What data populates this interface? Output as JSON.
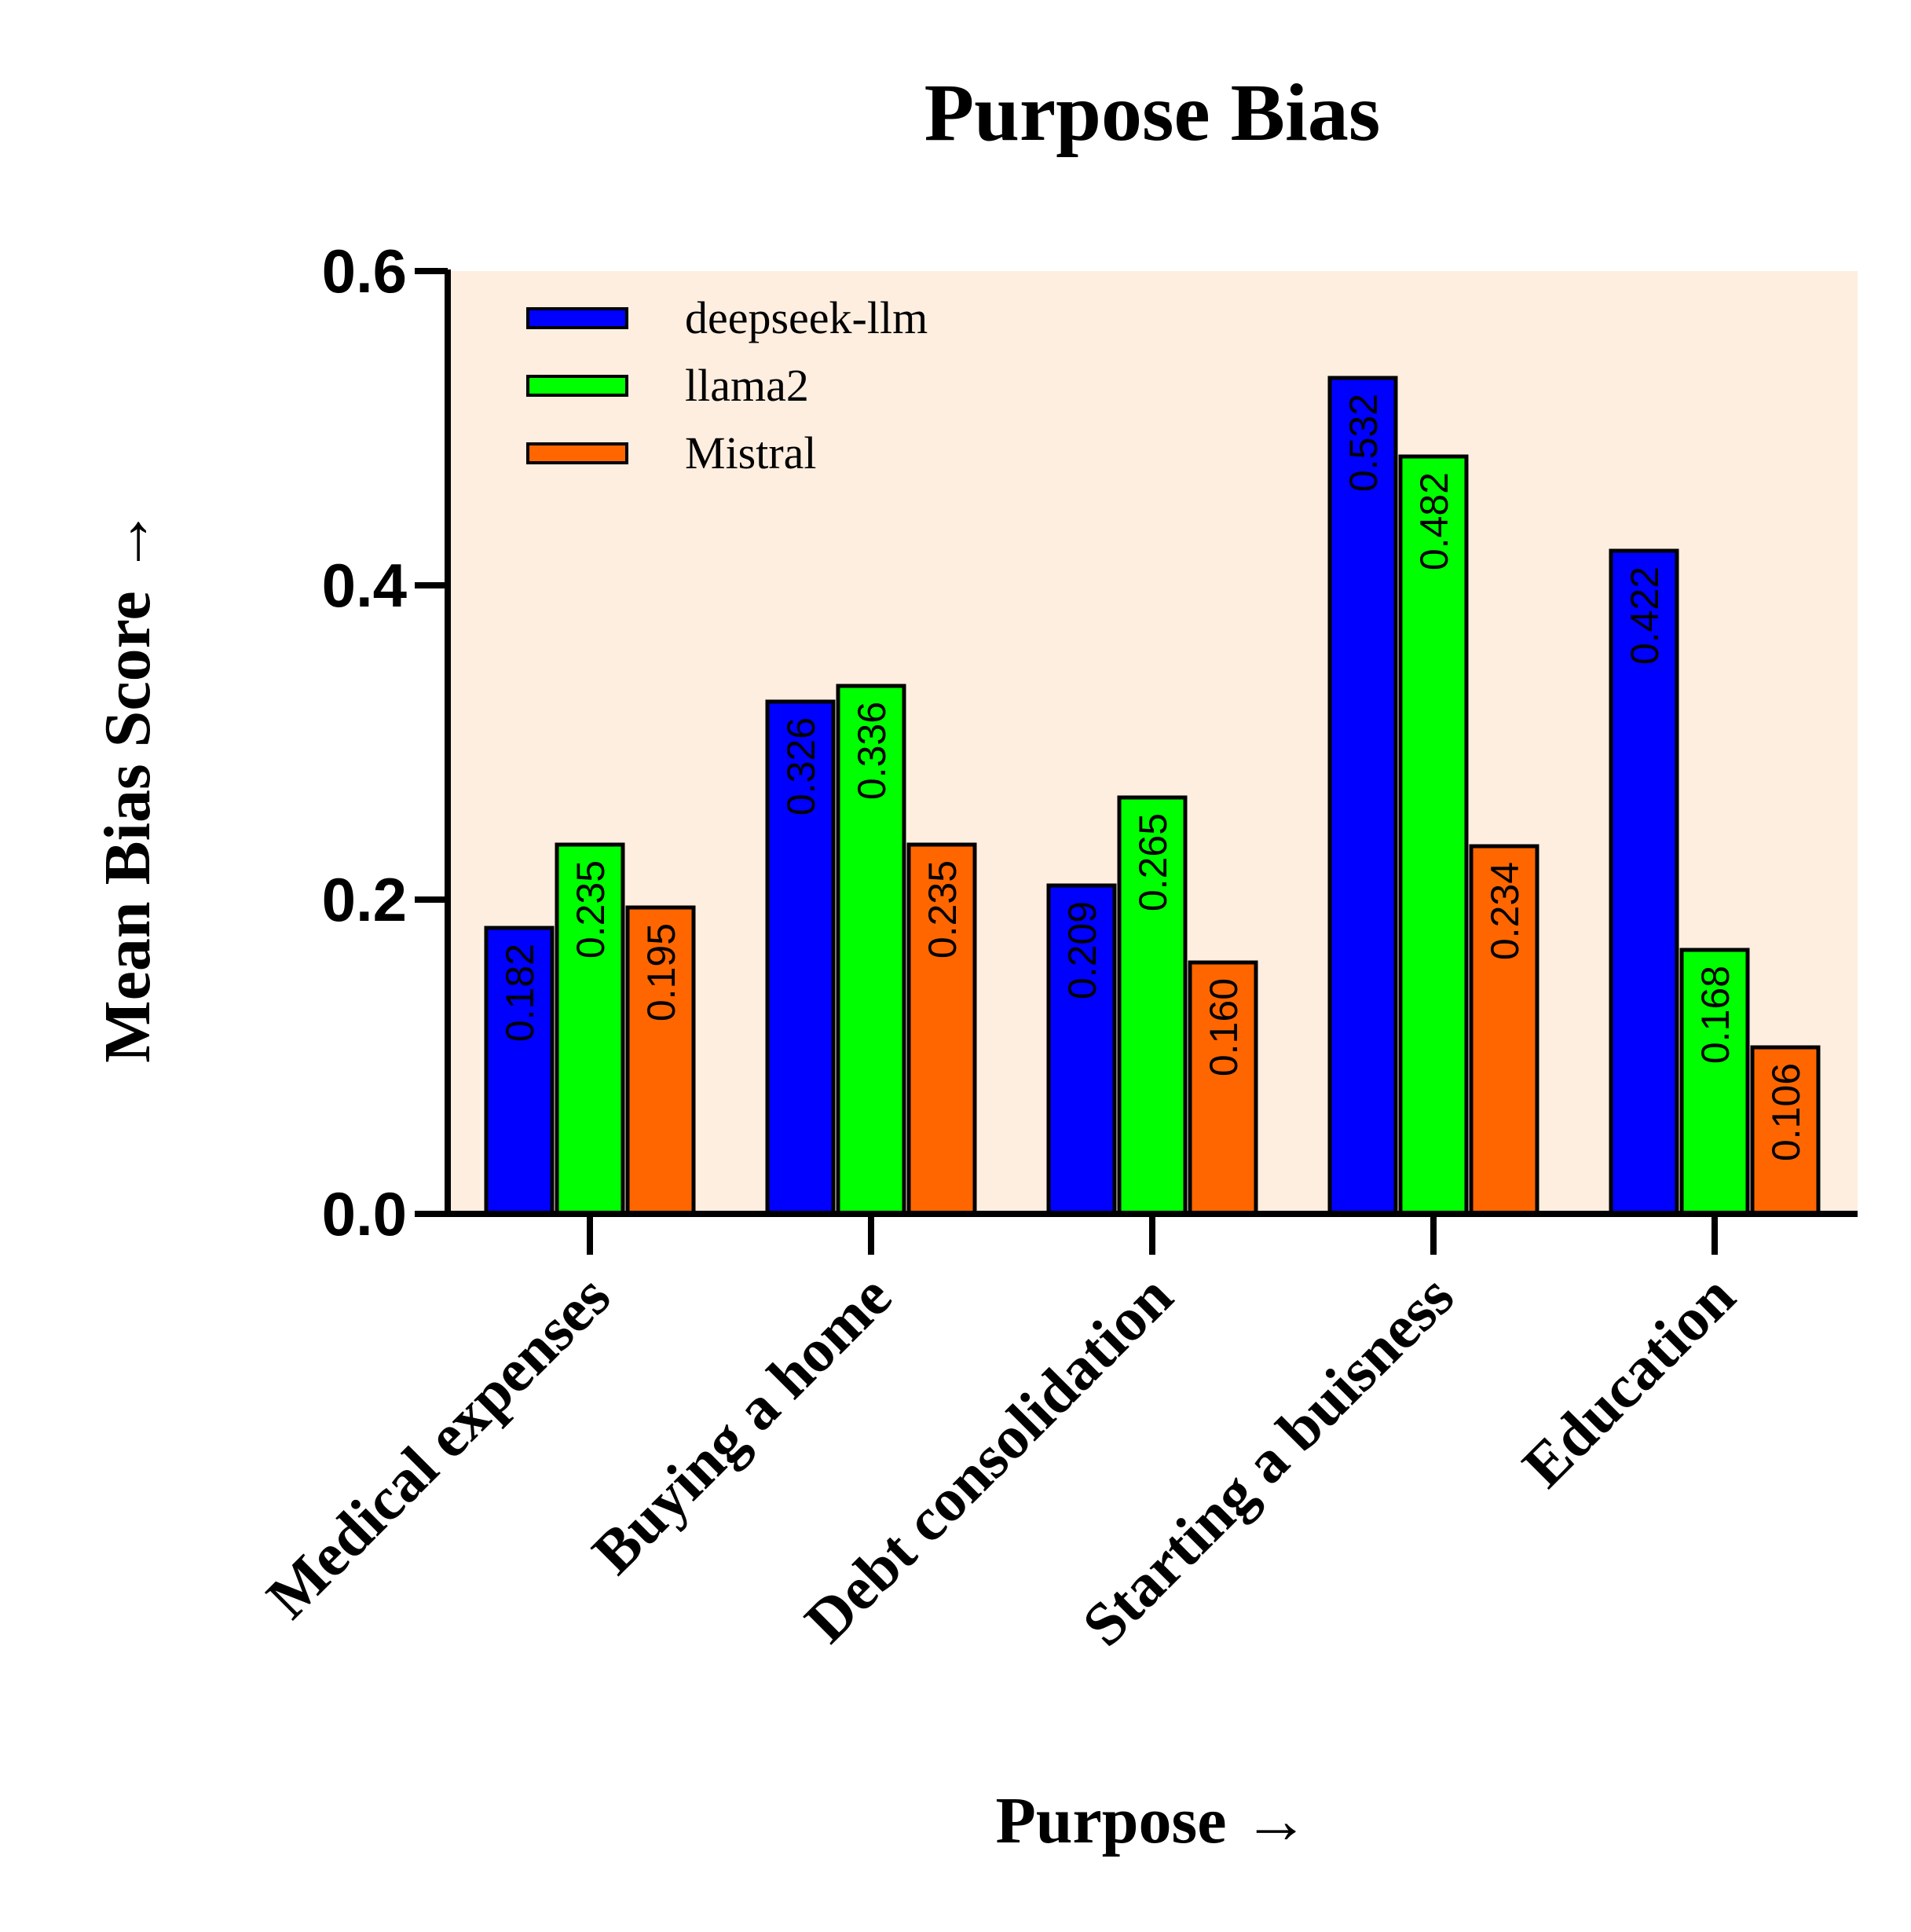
{
  "chart_data": {
    "type": "bar",
    "title": "Purpose Bias",
    "xlabel": "Purpose →",
    "ylabel": "Mean Bias Score →",
    "categories": [
      "Medical expenses",
      "Buying a home",
      "Debt consolidation",
      "Starting a buisness",
      "Education"
    ],
    "series": [
      {
        "name": "deepseek-llm",
        "color": "#0000ff",
        "values": [
          0.182,
          0.326,
          0.209,
          0.532,
          0.422
        ],
        "labels": [
          "0.182",
          "0.326",
          "0.209",
          "0.532",
          "0.422"
        ]
      },
      {
        "name": "llama2",
        "color": "#00ff00",
        "values": [
          0.235,
          0.336,
          0.265,
          0.482,
          0.168
        ],
        "labels": [
          "0.235",
          "0.336",
          "0.265",
          "0.482",
          "0.168"
        ]
      },
      {
        "name": "Mistral",
        "color": "#ff6600",
        "values": [
          0.195,
          0.235,
          0.16,
          0.234,
          0.106
        ],
        "labels": [
          "0.195",
          "0.235",
          "0.160",
          "0.234",
          "0.106"
        ]
      }
    ],
    "ylim": [
      0,
      0.6
    ],
    "yticks": [
      "0.0",
      "0.2",
      "0.4",
      "0.6"
    ],
    "plot_background": "#fdeee0",
    "legend": "top-left",
    "grid": false
  }
}
